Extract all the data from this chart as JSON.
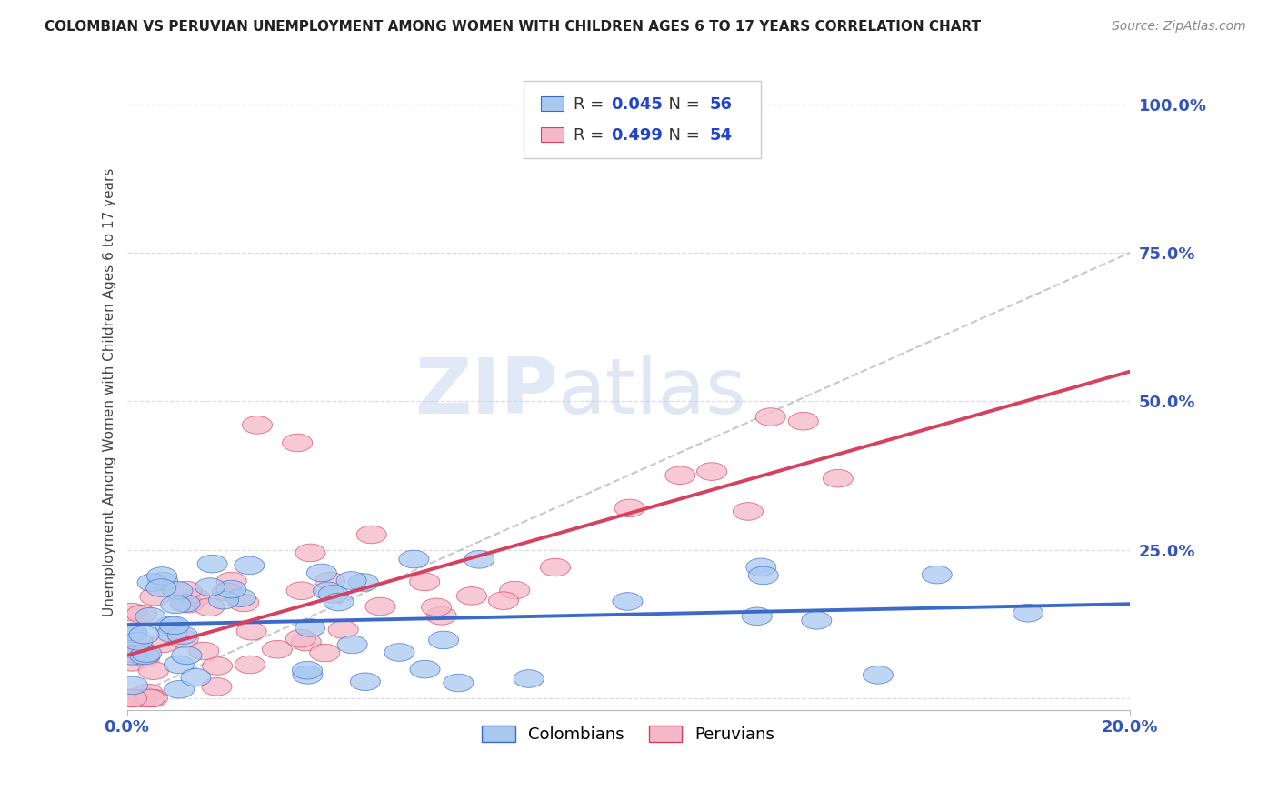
{
  "title": "COLOMBIAN VS PERUVIAN UNEMPLOYMENT AMONG WOMEN WITH CHILDREN AGES 6 TO 17 YEARS CORRELATION CHART",
  "source": "Source: ZipAtlas.com",
  "ylabel": "Unemployment Among Women with Children Ages 6 to 17 years",
  "xlim": [
    0.0,
    0.2
  ],
  "ylim": [
    -0.02,
    1.05
  ],
  "colombian_R": "0.045",
  "colombian_N": "56",
  "peruvian_R": "0.499",
  "peruvian_N": "54",
  "colombian_color": "#a8c8f0",
  "peruvian_color": "#f5b8c8",
  "colombian_line_color": "#3a6bc8",
  "peruvian_line_color": "#d84060",
  "ref_line_color": "#bbbbbb",
  "legend_text_color": "#333333",
  "legend_val_color": "#2244cc",
  "watermark_color": "#d0dff0",
  "watermark_color2": "#d8e8f8"
}
